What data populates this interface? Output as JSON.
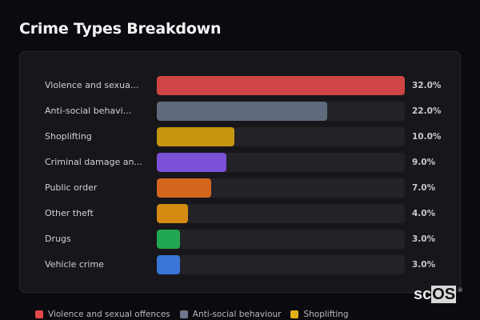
{
  "header": {
    "title": "Crime Types Breakdown"
  },
  "rows": [
    {
      "label": "Violence and sexua...",
      "pct_label": "32.0%",
      "color": "#cf4444",
      "width_pct": 100
    },
    {
      "label": "Anti-social behavi...",
      "pct_label": "22.0%",
      "color": "#5f6b7c",
      "width_pct": 68.75
    },
    {
      "label": "Shoplifting",
      "pct_label": "10.0%",
      "color": "#c7960f",
      "width_pct": 31.25
    },
    {
      "label": "Criminal damage an...",
      "pct_label": "9.0%",
      "color": "#7b4fd6",
      "width_pct": 28.1
    },
    {
      "label": "Public order",
      "pct_label": "7.0%",
      "color": "#d4651c",
      "width_pct": 21.9
    },
    {
      "label": "Other theft",
      "pct_label": "4.0%",
      "color": "#d58a12",
      "width_pct": 12.5
    },
    {
      "label": "Drugs",
      "pct_label": "3.0%",
      "color": "#22a852",
      "width_pct": 9.4
    },
    {
      "label": "Vehicle crime",
      "pct_label": "3.0%",
      "color": "#3a75d8",
      "width_pct": 9.4
    }
  ],
  "legend": [
    {
      "label": "Violence and sexual offences",
      "color": "#e04848"
    },
    {
      "label": "Anti-social behaviour",
      "color": "#6a778a"
    },
    {
      "label": "Shoplifting",
      "color": "#e0b01a"
    }
  ],
  "logo": {
    "prefix": "sc",
    "highlight": "OS",
    "mark": "®"
  },
  "chart_data": {
    "type": "bar",
    "orientation": "horizontal",
    "title": "Crime Types Breakdown",
    "categories": [
      "Violence and sexual offences",
      "Anti-social behaviour",
      "Shoplifting",
      "Criminal damage and arson",
      "Public order",
      "Other theft",
      "Drugs",
      "Vehicle crime"
    ],
    "values": [
      32.0,
      22.0,
      10.0,
      9.0,
      7.0,
      4.0,
      3.0,
      3.0
    ],
    "unit": "%",
    "xlabel": "",
    "ylabel": "",
    "xlim": [
      0,
      32
    ],
    "grid": false,
    "legend_position": "bottom",
    "legend_entries": [
      "Violence and sexual offences",
      "Anti-social behaviour",
      "Shoplifting"
    ]
  }
}
